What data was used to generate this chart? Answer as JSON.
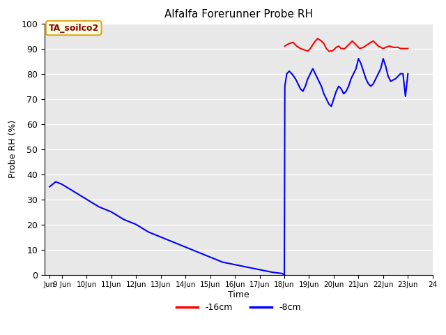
{
  "title": "Alfalfa Forerunner Probe RH",
  "ylabel": "Probe RH (%)",
  "xlabel": "Time",
  "annotation": "TA_soilco2",
  "ylim": [
    0,
    100
  ],
  "xlim": [
    8.3,
    24.0
  ],
  "background_color": "#e8e8e8",
  "grid_color": "white",
  "legend_labels": [
    "-16cm",
    "-8cm"
  ],
  "legend_colors": [
    "red",
    "blue"
  ],
  "x_tick_positions": [
    8.5,
    9,
    10,
    11,
    12,
    13,
    14,
    15,
    16,
    17,
    18,
    19,
    20,
    21,
    22,
    23,
    24
  ],
  "x_tick_labels": [
    "Jun",
    "9 Jun",
    "10Jun",
    "11Jun",
    "12Jun",
    "13Jun",
    "14Jun",
    "15Jun",
    "16Jun",
    "17Jun",
    "18Jun",
    "19Jun",
    "20Jun",
    "21Jun",
    "22Jun",
    "23Jun",
    "24"
  ],
  "red_line": {
    "x": [
      18.02,
      18.1,
      18.2,
      18.35,
      18.5,
      18.65,
      18.8,
      18.95,
      19.05,
      19.15,
      19.25,
      19.35,
      19.5,
      19.6,
      19.7,
      19.8,
      19.9,
      20.0,
      20.1,
      20.2,
      20.3,
      20.45,
      20.55,
      20.65,
      20.75,
      20.85,
      20.95,
      21.05,
      21.2,
      21.35,
      21.5,
      21.6,
      21.7,
      21.8,
      21.9,
      22.0,
      22.1,
      22.25,
      22.4,
      22.5,
      22.6,
      22.7,
      22.8,
      22.9,
      23.0
    ],
    "y": [
      91,
      91.5,
      92,
      92.5,
      91,
      90,
      89.5,
      89,
      90,
      91.5,
      93,
      94,
      93,
      92,
      90,
      89,
      89,
      89.5,
      90.5,
      91,
      90,
      90,
      91,
      92,
      93,
      92,
      91,
      90,
      90.5,
      91.5,
      92.5,
      93,
      92,
      91,
      90.5,
      90,
      90.5,
      91,
      90.5,
      90.5,
      90.5,
      90,
      90,
      90,
      90
    ]
  },
  "blue_line_phase1": {
    "x": [
      8.5,
      8.75,
      9.0,
      9.5,
      10.0,
      10.5,
      11.0,
      11.5,
      12.0,
      12.5,
      13.0,
      13.5,
      14.0,
      14.5,
      15.0,
      15.5,
      16.0,
      16.5,
      17.0,
      17.5,
      17.9,
      18.0
    ],
    "y": [
      35,
      37,
      36,
      33,
      30,
      27,
      25,
      22,
      20,
      17,
      15,
      13,
      11,
      9,
      7,
      5,
      4,
      3,
      2,
      1,
      0.5,
      0
    ]
  },
  "blue_line_phase2": {
    "x": [
      18.0,
      18.02,
      18.1,
      18.2,
      18.3,
      18.45,
      18.55,
      18.65,
      18.75,
      18.85,
      18.95,
      19.05,
      19.15,
      19.25,
      19.35,
      19.5,
      19.6,
      19.7,
      19.8,
      19.9,
      20.0,
      20.1,
      20.2,
      20.3,
      20.4,
      20.5,
      20.6,
      20.7,
      20.8,
      20.9,
      21.0,
      21.1,
      21.2,
      21.3,
      21.4,
      21.5,
      21.6,
      21.7,
      21.8,
      21.9,
      22.0,
      22.1,
      22.2,
      22.3,
      22.5,
      22.6,
      22.7,
      22.8,
      22.9,
      23.0
    ],
    "y": [
      0,
      75,
      80,
      81,
      80,
      78,
      76,
      74,
      73,
      75,
      78,
      80,
      82,
      80,
      78,
      75,
      72,
      70,
      68,
      67,
      70,
      73,
      75,
      74,
      72,
      73,
      75,
      78,
      80,
      82,
      86,
      84,
      81,
      78,
      76,
      75,
      76,
      78,
      80,
      82,
      86,
      83,
      79,
      77,
      78,
      79,
      80,
      80,
      71,
      80
    ]
  }
}
